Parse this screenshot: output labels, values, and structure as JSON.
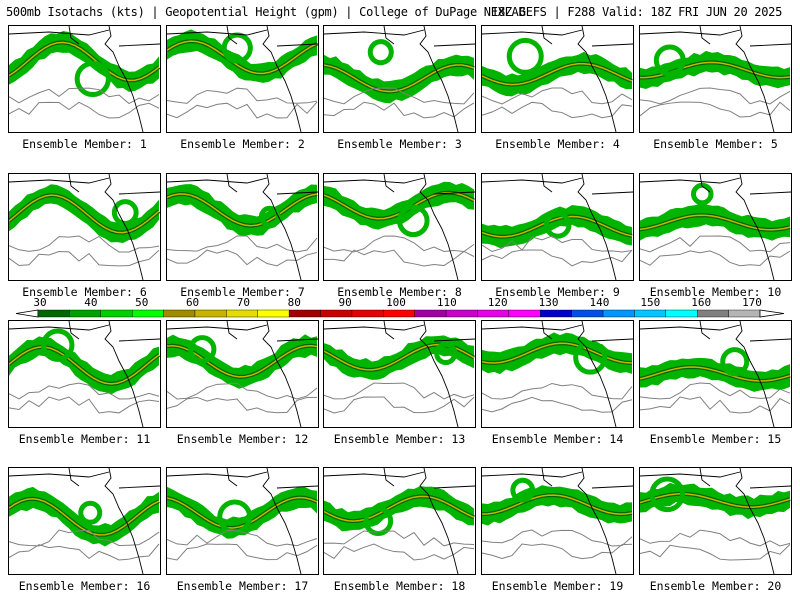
{
  "header": {
    "left": "500mb Isotachs (kts) | Geopotential Height (gpm) | College of DuPage NEXLAB",
    "right": "18Z GEFS | F288 Valid: 18Z FRI JUN 20 2025"
  },
  "panel_label_prefix": "Ensemble Member: ",
  "members": [
    {
      "label": "Ensemble Member: 1",
      "member": 1
    },
    {
      "label": "Ensemble Member: 2",
      "member": 2
    },
    {
      "label": "Ensemble Member: 3",
      "member": 3
    },
    {
      "label": "Ensemble Member: 4",
      "member": 4
    },
    {
      "label": "Ensemble Member: 5",
      "member": 5
    },
    {
      "label": "Ensemble Member: 6",
      "member": 6
    },
    {
      "label": "Ensemble Member: 7",
      "member": 7
    },
    {
      "label": "Ensemble Member: 8",
      "member": 8
    },
    {
      "label": "Ensemble Member: 9",
      "member": 9
    },
    {
      "label": "Ensemble Member: 10",
      "member": 10
    },
    {
      "label": "Ensemble Member: 11",
      "member": 11
    },
    {
      "label": "Ensemble Member: 12",
      "member": 12
    },
    {
      "label": "Ensemble Member: 13",
      "member": 13
    },
    {
      "label": "Ensemble Member: 14",
      "member": 14
    },
    {
      "label": "Ensemble Member: 15",
      "member": 15
    },
    {
      "label": "Ensemble Member: 16",
      "member": 16
    },
    {
      "label": "Ensemble Member: 17",
      "member": 17
    },
    {
      "label": "Ensemble Member: 18",
      "member": 18
    },
    {
      "label": "Ensemble Member: 19",
      "member": 19
    },
    {
      "label": "Ensemble Member: 20",
      "member": 20
    }
  ],
  "colorbar": {
    "ticks": [
      "30",
      "40",
      "50",
      "60",
      "70",
      "80",
      "90",
      "100",
      "110",
      "120",
      "130",
      "140",
      "150",
      "160",
      "170"
    ],
    "colors": [
      "#006600",
      "#00a000",
      "#00d000",
      "#00ff00",
      "#a08c00",
      "#c8b400",
      "#e6dc00",
      "#ffff00",
      "#a00000",
      "#c80000",
      "#e60000",
      "#ff0000",
      "#a000a0",
      "#c800c8",
      "#e600e6",
      "#ff00ff",
      "#0000c8",
      "#0050e6",
      "#0096ff",
      "#00c8ff",
      "#00ffff",
      "#808080",
      "#b4b4b4"
    ]
  }
}
